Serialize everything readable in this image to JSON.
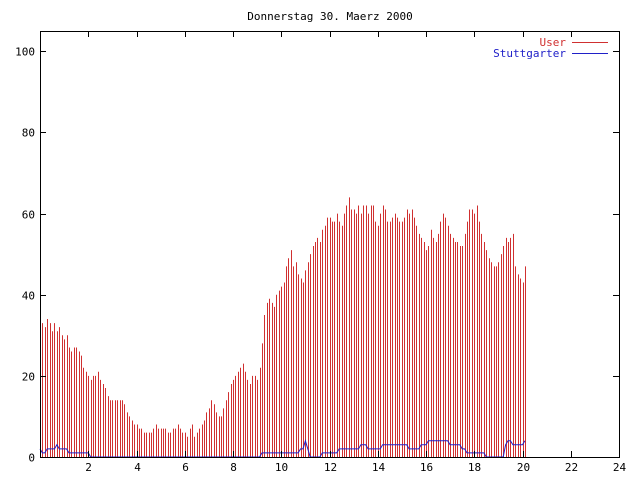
{
  "chart_data": {
    "type": "bar",
    "title": "Donnerstag 30. Maerz 2000",
    "xlabel": "",
    "ylabel": "",
    "xlim": [
      0,
      24
    ],
    "ylim": [
      0,
      105
    ],
    "xticks": [
      2,
      4,
      6,
      8,
      10,
      12,
      14,
      16,
      18,
      20,
      22,
      24
    ],
    "yticks": [
      0,
      20,
      40,
      60,
      80,
      100
    ],
    "grid": false,
    "legend_position": "top-right",
    "bar_interval_hours": 0.1,
    "series": [
      {
        "name": "User",
        "type": "impulses",
        "color": "#d03030",
        "values": [
          40,
          33,
          32,
          34,
          33,
          31,
          33,
          31,
          32,
          30,
          29,
          30,
          27,
          26,
          27,
          27,
          26,
          25,
          22,
          21,
          20,
          19,
          20,
          20,
          21,
          19,
          18,
          17,
          15,
          14,
          14,
          14,
          14,
          14,
          14,
          13,
          11,
          10,
          9,
          8,
          8,
          7,
          7,
          6,
          6,
          6,
          6,
          7,
          8,
          7,
          7,
          7,
          7,
          6,
          6,
          7,
          7,
          8,
          7,
          6,
          6,
          5,
          7,
          8,
          5,
          6,
          7,
          8,
          9,
          11,
          12,
          14,
          13,
          11,
          10,
          10,
          12,
          14,
          16,
          18,
          19,
          20,
          21,
          22,
          23,
          21,
          19,
          18,
          20,
          20,
          19,
          22,
          28,
          35,
          38,
          39,
          38,
          37,
          40,
          41,
          42,
          43,
          47,
          49,
          51,
          47,
          48,
          45,
          44,
          43,
          46,
          48,
          50,
          52,
          53,
          54,
          53,
          56,
          57,
          59,
          59,
          58,
          58,
          60,
          58,
          57,
          60,
          62,
          64,
          61,
          61,
          60,
          62,
          60,
          62,
          62,
          60,
          62,
          62,
          58,
          57,
          60,
          62,
          61,
          58,
          58,
          59,
          60,
          59,
          58,
          58,
          59,
          61,
          60,
          61,
          59,
          57,
          55,
          54,
          53,
          51,
          52,
          56,
          54,
          53,
          55,
          58,
          60,
          59,
          57,
          55,
          54,
          53,
          53,
          52,
          52,
          55,
          58,
          61,
          61,
          60,
          62,
          58,
          55,
          53,
          51,
          49,
          48,
          47,
          47,
          48,
          50,
          52,
          54,
          53,
          54,
          55,
          47,
          45,
          44,
          43,
          47
        ]
      },
      {
        "name": "Stuttgarter",
        "type": "line",
        "color": "#2020c8",
        "values": [
          2,
          1,
          1,
          2,
          2,
          2,
          2,
          3,
          2,
          2,
          2,
          2,
          1,
          1,
          1,
          1,
          1,
          1,
          1,
          1,
          1,
          0,
          0,
          0,
          0,
          0,
          0,
          0,
          0,
          0,
          0,
          0,
          0,
          0,
          0,
          0,
          0,
          0,
          0,
          0,
          0,
          0,
          0,
          0,
          0,
          0,
          0,
          0,
          0,
          0,
          0,
          0,
          0,
          0,
          0,
          0,
          0,
          0,
          0,
          0,
          0,
          0,
          0,
          0,
          0,
          0,
          0,
          0,
          0,
          0,
          0,
          0,
          0,
          0,
          0,
          0,
          0,
          0,
          0,
          0,
          0,
          0,
          0,
          0,
          0,
          0,
          0,
          0,
          0,
          0,
          0,
          0,
          1,
          1,
          1,
          1,
          1,
          1,
          1,
          1,
          1,
          1,
          1,
          1,
          1,
          1,
          1,
          1,
          2,
          2,
          4,
          2,
          0,
          0,
          0,
          0,
          0,
          1,
          1,
          1,
          1,
          1,
          1,
          1,
          2,
          2,
          2,
          2,
          2,
          2,
          2,
          2,
          2,
          3,
          3,
          3,
          2,
          2,
          2,
          2,
          2,
          2,
          3,
          3,
          3,
          3,
          3,
          3,
          3,
          3,
          3,
          3,
          3,
          2,
          2,
          2,
          2,
          2,
          3,
          3,
          3,
          4,
          4,
          4,
          4,
          4,
          4,
          4,
          4,
          4,
          3,
          3,
          3,
          3,
          3,
          2,
          2,
          1,
          1,
          1,
          1,
          1,
          1,
          1,
          1,
          0,
          0,
          0,
          0,
          0,
          0,
          0,
          0,
          3,
          4,
          4,
          3,
          3,
          3,
          3,
          3,
          4
        ]
      }
    ]
  }
}
